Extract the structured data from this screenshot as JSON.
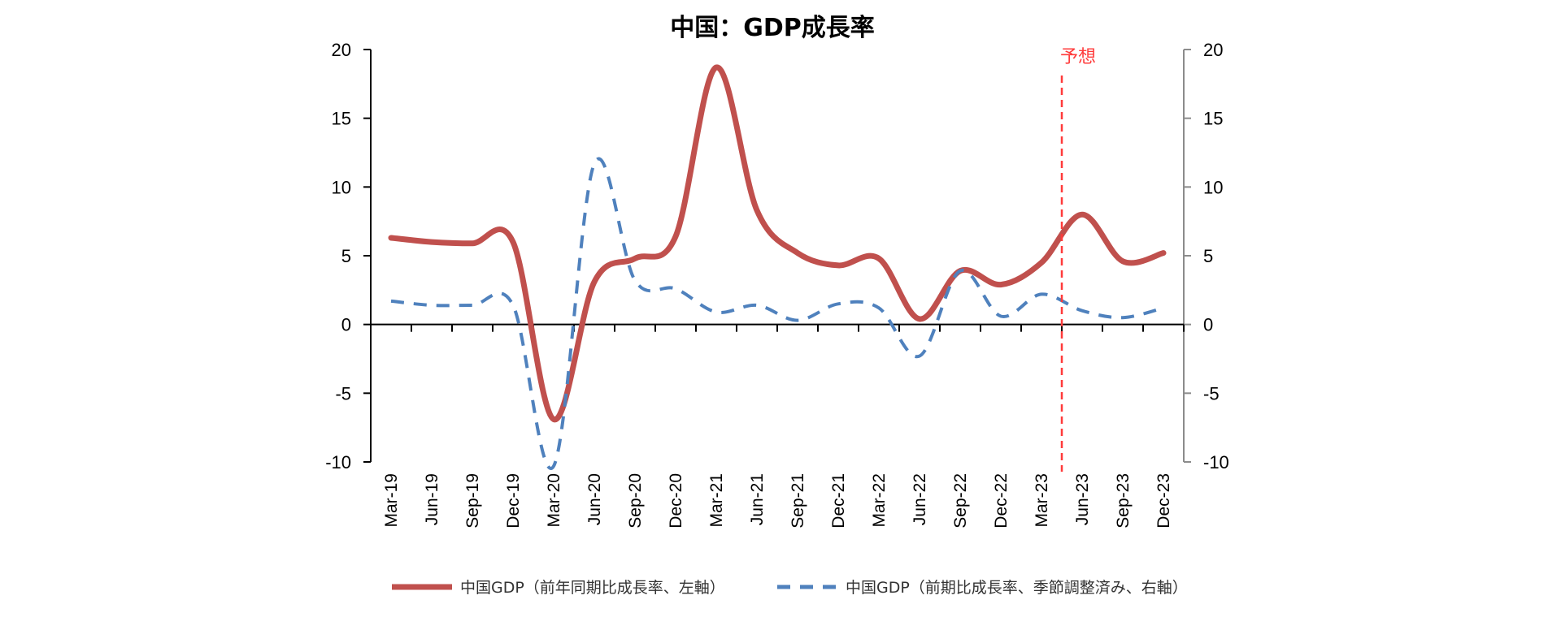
{
  "chart_data": {
    "type": "line",
    "title": "中国：GDP成長率",
    "categories": [
      "Mar-19",
      "Jun-19",
      "Sep-19",
      "Dec-19",
      "Mar-20",
      "Jun-20",
      "Sep-20",
      "Dec-20",
      "Mar-21",
      "Jun-21",
      "Sep-21",
      "Dec-21",
      "Mar-22",
      "Jun-22",
      "Sep-22",
      "Dec-22",
      "Mar-23",
      "Jun-23",
      "Sep-23",
      "Dec-23"
    ],
    "y_left": {
      "ylim": [
        -10,
        20
      ],
      "ticks": [
        20,
        15,
        10,
        5,
        0,
        -5,
        -10
      ],
      "tick_labels": [
        "20",
        "15",
        "10",
        "5",
        "0",
        "-5",
        "-10"
      ]
    },
    "y_right": {
      "ylim": [
        -10,
        20
      ],
      "ticks": [
        20,
        15,
        10,
        5,
        0,
        -5,
        -10
      ],
      "tick_labels": [
        "20",
        "15",
        "10",
        "5",
        "0",
        "-5",
        "-10"
      ]
    },
    "series": [
      {
        "name": "中国GDP（前年同期比成長率、左軸）",
        "axis": "left",
        "style": "solid",
        "color": "#c0504d",
        "values": [
          6.3,
          6.0,
          5.9,
          6.0,
          -6.9,
          3.1,
          4.8,
          6.4,
          18.7,
          8.3,
          5.2,
          4.3,
          4.8,
          0.4,
          3.9,
          2.9,
          4.5,
          8.0,
          4.6,
          5.2
        ]
      },
      {
        "name": "中国GDP（前期比成長率、季節調整済み、右軸）",
        "axis": "right",
        "style": "dashed",
        "color": "#4f81bd",
        "values": [
          1.7,
          1.4,
          1.4,
          1.4,
          -10.3,
          11.7,
          3.2,
          2.6,
          0.9,
          1.4,
          0.3,
          1.5,
          1.2,
          -2.3,
          3.9,
          0.6,
          2.2,
          1.0,
          0.5,
          1.2
        ]
      }
    ],
    "annotation": {
      "label": "予想",
      "between": [
        "Mar-23",
        "Jun-23"
      ],
      "color": "#ff3b3b",
      "style": "dashed-vertical"
    },
    "legend": {
      "position": "bottom"
    },
    "grid": false
  }
}
